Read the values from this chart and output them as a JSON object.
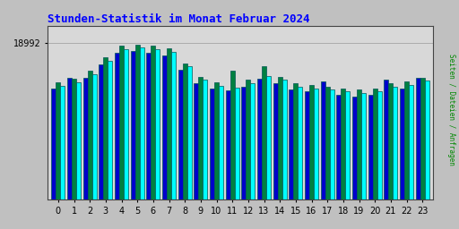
{
  "title": "Stunden-Statistik im Monat Februar 2024",
  "title_color": "#0000ff",
  "ylabel": "Seiten / Dateien / Anfragen",
  "ylabel_color": "#008800",
  "background_color": "#c0c0c0",
  "plot_bg_color": "#d8d8d8",
  "hours": [
    0,
    1,
    2,
    3,
    4,
    5,
    6,
    7,
    8,
    9,
    10,
    11,
    12,
    13,
    14,
    15,
    16,
    17,
    18,
    19,
    20,
    21,
    22,
    23
  ],
  "ytick_label": "18992",
  "ylim": [
    0,
    21000
  ],
  "ytick_val": 18992,
  "seiten": [
    13800,
    14200,
    15200,
    16800,
    18200,
    18400,
    18200,
    17900,
    16100,
    14500,
    13800,
    13600,
    14100,
    15000,
    14500,
    13700,
    13500,
    13300,
    13100,
    12900,
    13100,
    13700,
    13900,
    14400
  ],
  "dateien": [
    14200,
    14600,
    15600,
    17200,
    18600,
    18800,
    18600,
    18300,
    16500,
    14900,
    14200,
    15600,
    14500,
    16200,
    14900,
    14100,
    13900,
    13700,
    13500,
    13300,
    13500,
    14100,
    14300,
    14800
  ],
  "anfragen": [
    13400,
    14800,
    14800,
    16400,
    17800,
    18000,
    17800,
    17500,
    15700,
    14100,
    13400,
    13200,
    13700,
    14600,
    14100,
    13300,
    13100,
    14300,
    12700,
    12500,
    12700,
    14500,
    13500,
    14800
  ],
  "color_seiten": "#00ffff",
  "color_dateien": "#008040",
  "color_anfragen": "#0000cc",
  "bar_edge_color": "#005555",
  "bar_width": 0.28
}
